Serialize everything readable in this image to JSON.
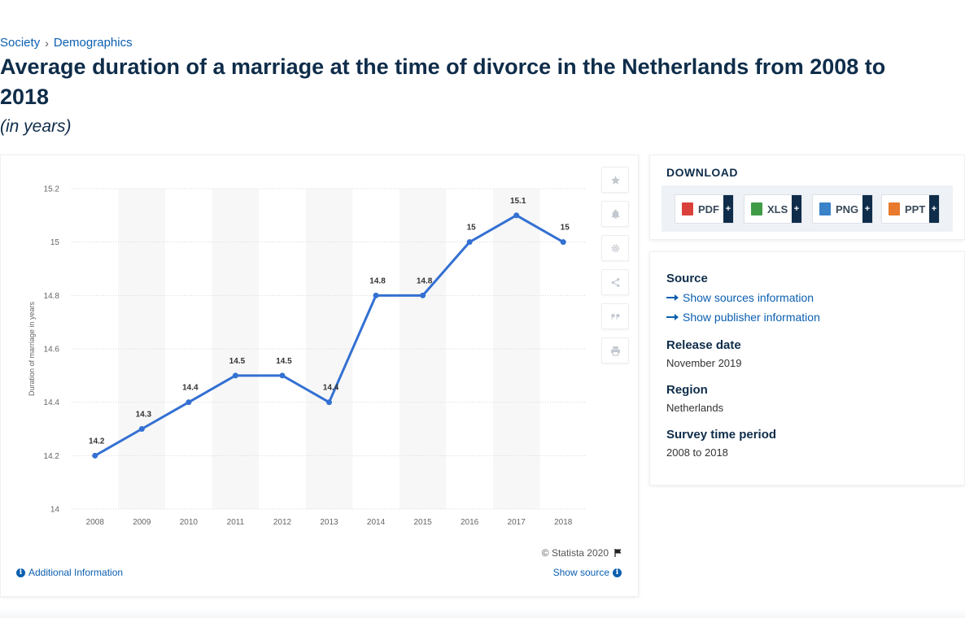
{
  "breadcrumb": {
    "items": [
      "Society",
      "Demographics"
    ]
  },
  "title": "Average duration of a marriage at the time of divorce in the Netherlands from 2008 to 2018",
  "subtitle": "(in years)",
  "toolbar": {
    "icons": [
      "star-icon",
      "bell-icon",
      "gear-icon",
      "share-icon",
      "quote-icon",
      "print-icon"
    ]
  },
  "footer": {
    "copyright": "© Statista 2020",
    "additional_info": "Additional Information",
    "show_source": "Show source"
  },
  "download": {
    "title": "DOWNLOAD",
    "buttons": [
      {
        "label": "PDF",
        "color": "#d9413a"
      },
      {
        "label": "XLS",
        "color": "#3f9b46"
      },
      {
        "label": "PNG",
        "color": "#3a83c9"
      },
      {
        "label": "PPT",
        "color": "#e77a2c"
      }
    ],
    "plus": "+"
  },
  "info": {
    "source_label": "Source",
    "show_sources": "Show sources information",
    "show_publisher": "Show publisher information",
    "release_label": "Release date",
    "release_value": "November 2019",
    "region_label": "Region",
    "region_value": "Netherlands",
    "period_label": "Survey time period",
    "period_value": "2008 to 2018"
  },
  "chart_data": {
    "type": "line",
    "categories": [
      "2008",
      "2009",
      "2010",
      "2011",
      "2012",
      "2013",
      "2014",
      "2015",
      "2016",
      "2017",
      "2018"
    ],
    "values": [
      14.2,
      14.3,
      14.4,
      14.5,
      14.5,
      14.4,
      14.8,
      14.8,
      15,
      15.1,
      15
    ],
    "data_labels": [
      "14.2",
      "14.3",
      "14.4",
      "14.5",
      "14.5",
      "14.4",
      "14.8",
      "14.8",
      "15",
      "15.1",
      "15"
    ],
    "ylabel": "Duration of marriage in years",
    "ylim": [
      14,
      15.2
    ],
    "yticks": [
      "14",
      "14.2",
      "14.4",
      "14.6",
      "14.8",
      "15",
      "15.2"
    ],
    "line_color": "#3370d2",
    "grid": true
  }
}
